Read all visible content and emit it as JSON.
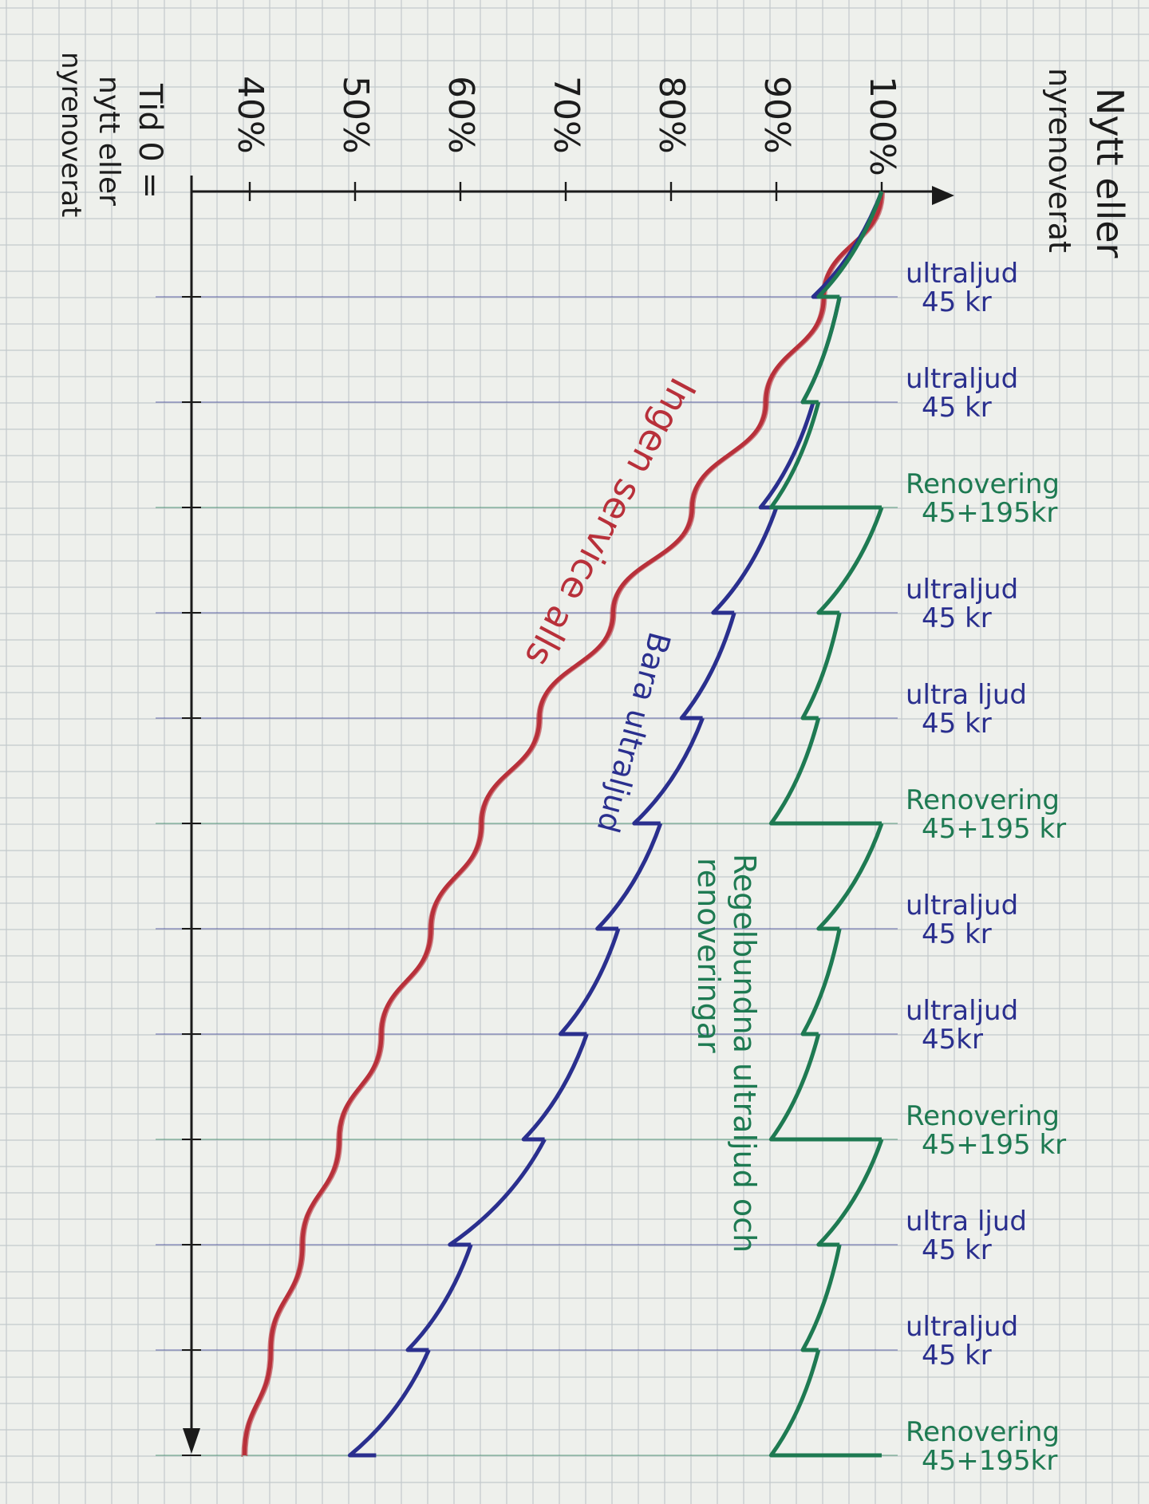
{
  "chart_data": {
    "type": "line",
    "title": "Nytt eller nyrenoverat",
    "ylabel": "",
    "xlabel": "Tid 0 = nytt eller nyrenoverat",
    "y_ticks": [
      "100%",
      "90%",
      "80%",
      "70%",
      "60%",
      "50%",
      "40%"
    ],
    "ylim": [
      38,
      100
    ],
    "x_units": [
      0,
      1,
      2,
      3,
      4,
      5,
      6,
      7,
      8,
      9,
      10,
      11,
      12
    ],
    "events": [
      {
        "x": 1,
        "line1": "ultraljud",
        "line2": "45 kr",
        "color": "#2a2f8e"
      },
      {
        "x": 2,
        "line1": "ultraljud",
        "line2": "45 kr",
        "color": "#2a2f8e"
      },
      {
        "x": 3,
        "line1": "Renovering",
        "line2": "45+195kr",
        "color": "#1e7a52"
      },
      {
        "x": 4,
        "line1": "ultraljud",
        "line2": "45 kr",
        "color": "#2a2f8e"
      },
      {
        "x": 5,
        "line1": "ultra ljud",
        "line2": "45 kr",
        "color": "#2a2f8e"
      },
      {
        "x": 6,
        "line1": "Renovering",
        "line2": "45+195 kr",
        "color": "#1e7a52"
      },
      {
        "x": 7,
        "line1": "ultraljud",
        "line2": "45 kr",
        "color": "#2a2f8e"
      },
      {
        "x": 8,
        "line1": "ultraljud",
        "line2": "45kr",
        "color": "#2a2f8e"
      },
      {
        "x": 9,
        "line1": "Renovering",
        "line2": "45+195 kr",
        "color": "#1e7a52"
      },
      {
        "x": 10,
        "line1": "ultra ljud",
        "line2": "45 kr",
        "color": "#2a2f8e"
      },
      {
        "x": 11,
        "line1": "ultraljud",
        "line2": "45 kr",
        "color": "#2a2f8e"
      },
      {
        "x": 12,
        "line1": "Renovering",
        "line2": "45+195kr",
        "color": "#1e7a52"
      }
    ],
    "series": [
      {
        "name": "Ingen service alls",
        "color": "#b8303a",
        "kind": "smooth",
        "points": [
          [
            0,
            100
          ],
          [
            1,
            94.5
          ],
          [
            2,
            89
          ],
          [
            3,
            82
          ],
          [
            4,
            74.5
          ],
          [
            5,
            67.5
          ],
          [
            6,
            62
          ],
          [
            7,
            57.2
          ],
          [
            8,
            52.5
          ],
          [
            9,
            48.5
          ],
          [
            10,
            45
          ],
          [
            11,
            42
          ],
          [
            12,
            39.5
          ]
        ]
      },
      {
        "name": "Bara ultraljud",
        "color": "#2a2f8e",
        "kind": "sawtooth",
        "segments": [
          {
            "x0": 0,
            "y0": 100,
            "x1": 1,
            "y1": 93.5,
            "reset": 96
          },
          {
            "x0": 1,
            "y0": 96,
            "x1": 2,
            "y1": 92.5,
            "reset": 93.5
          },
          {
            "x0": 2,
            "y0": 93.5,
            "x1": 3,
            "y1": 88.5,
            "reset": 90
          },
          {
            "x0": 3,
            "y0": 90,
            "x1": 4,
            "y1": 84,
            "reset": 86
          },
          {
            "x0": 4,
            "y0": 86,
            "x1": 5,
            "y1": 81,
            "reset": 83
          },
          {
            "x0": 5,
            "y0": 83,
            "x1": 6,
            "y1": 76.5,
            "reset": 79
          },
          {
            "x0": 6,
            "y0": 79,
            "x1": 7,
            "y1": 73,
            "reset": 75
          },
          {
            "x0": 7,
            "y0": 75,
            "x1": 8,
            "y1": 69.5,
            "reset": 72
          },
          {
            "x0": 8,
            "y0": 72,
            "x1": 9,
            "y1": 66,
            "reset": 68
          },
          {
            "x0": 9,
            "y0": 68,
            "x1": 10,
            "y1": 59,
            "reset": 61
          },
          {
            "x0": 10,
            "y0": 61,
            "x1": 11,
            "y1": 55,
            "reset": 57
          },
          {
            "x0": 11,
            "y0": 57,
            "x1": 12,
            "y1": 49.5,
            "reset": 52
          }
        ]
      },
      {
        "name": "Regelbundna ultraljud och renoveringar",
        "color": "#1e7a52",
        "kind": "sawtooth",
        "segments": [
          {
            "x0": 0,
            "y0": 100,
            "x1": 1,
            "y1": 94,
            "reset": 96
          },
          {
            "x0": 1,
            "y0": 96,
            "x1": 2,
            "y1": 92.5,
            "reset": 94
          },
          {
            "x0": 2,
            "y0": 94,
            "x1": 3,
            "y1": 89.5,
            "reset": 100
          },
          {
            "x0": 3,
            "y0": 100,
            "x1": 4,
            "y1": 94,
            "reset": 96
          },
          {
            "x0": 4,
            "y0": 96,
            "x1": 5,
            "y1": 92.5,
            "reset": 94
          },
          {
            "x0": 5,
            "y0": 94,
            "x1": 6,
            "y1": 89.5,
            "reset": 100
          },
          {
            "x0": 6,
            "y0": 100,
            "x1": 7,
            "y1": 94,
            "reset": 96
          },
          {
            "x0": 7,
            "y0": 96,
            "x1": 8,
            "y1": 92.5,
            "reset": 94
          },
          {
            "x0": 8,
            "y0": 94,
            "x1": 9,
            "y1": 89.5,
            "reset": 100
          },
          {
            "x0": 9,
            "y0": 100,
            "x1": 10,
            "y1": 94,
            "reset": 96
          },
          {
            "x0": 10,
            "y0": 96,
            "x1": 11,
            "y1": 92.5,
            "reset": 94
          },
          {
            "x0": 11,
            "y0": 94,
            "x1": 12,
            "y1": 89.5,
            "reset": 100
          }
        ]
      }
    ],
    "series_labels": {
      "red": "Ingen service alls",
      "blue": "Bara ultraljud",
      "green_line1": "Regelbundna ultraljud och",
      "green_line2": "renoveringar"
    },
    "grid": true
  },
  "header": {
    "title_line1": "Nytt eller",
    "title_line2": "nyrenoverat"
  },
  "footer": {
    "time_label": "Tid 0 =",
    "time_line2": "nytt eller",
    "time_line3": "nyrenoverat"
  },
  "colors": {
    "red": "#b8303a",
    "blue": "#2a2f8e",
    "green": "#1e7a52",
    "axis": "#1a1a1a",
    "grid": "#c3c9cc"
  }
}
